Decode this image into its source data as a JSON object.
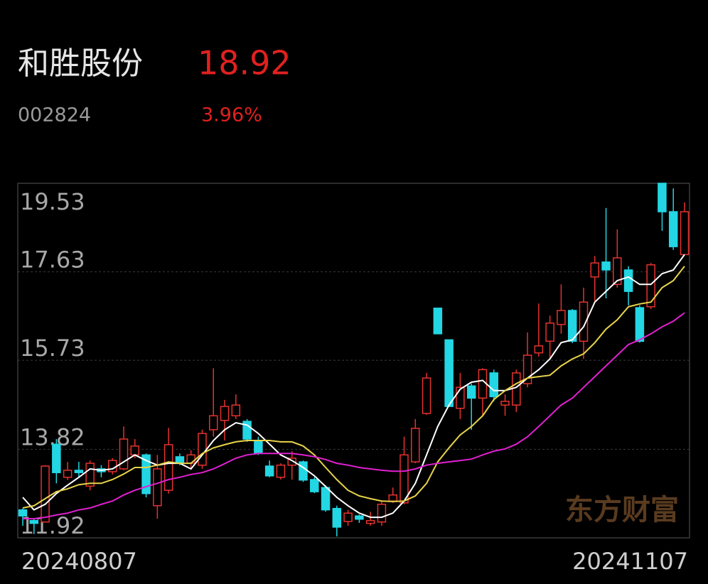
{
  "header": {
    "name": "和胜股份",
    "price": "18.92",
    "code": "002824",
    "change": "3.96%"
  },
  "watermark": "东方财富",
  "chart_data": {
    "type": "candlestick",
    "categories": [
      "20240807",
      null,
      null,
      null,
      null,
      null,
      null,
      null,
      null,
      null,
      null,
      null,
      null,
      null,
      null,
      null,
      null,
      null,
      null,
      null,
      null,
      null,
      null,
      null,
      null,
      null,
      null,
      null,
      null,
      null,
      null,
      null,
      null,
      null,
      null,
      null,
      null,
      null,
      null,
      null,
      null,
      null,
      null,
      null,
      null,
      null,
      null,
      null,
      null,
      null,
      null,
      null,
      null,
      null,
      null,
      null,
      null,
      null,
      null,
      "20241107"
    ],
    "open": [
      12.52,
      12.29,
      12.26,
      13.93,
      13.22,
      13.37,
      13.03,
      13.4,
      13.34,
      13.4,
      13.7,
      13.7,
      12.61,
      12.94,
      13.66,
      13.52,
      13.48,
      14.24,
      14.44,
      14.54,
      14.42,
      14.01,
      13.46,
      13.22,
      13.48,
      13.55,
      13.17,
      13.0,
      12.55,
      12.27,
      12.39,
      12.23,
      12.26,
      12.71,
      12.67,
      13.55,
      14.59,
      16.85,
      16.17,
      14.7,
      15.18,
      14.92,
      15.46,
      14.77,
      14.77,
      15.23,
      15.89,
      16.14,
      16.5,
      16.8,
      16.14,
      17.52,
      17.84,
      17.36,
      17.67,
      16.86,
      16.88,
      19.53,
      18.92,
      18.0
    ],
    "high": [
      12.55,
      12.33,
      13.48,
      14.04,
      13.55,
      13.55,
      13.58,
      13.48,
      13.63,
      14.31,
      14.04,
      13.73,
      13.7,
      14.28,
      13.73,
      13.8,
      14.24,
      15.56,
      14.88,
      15.0,
      14.47,
      14.09,
      13.58,
      13.52,
      13.78,
      13.58,
      13.22,
      13.05,
      12.61,
      12.52,
      12.42,
      12.48,
      12.71,
      13.0,
      14.09,
      14.47,
      15.46,
      16.85,
      16.17,
      15.46,
      15.23,
      15.56,
      15.53,
      15.0,
      15.53,
      16.33,
      16.95,
      16.69,
      17.36,
      16.83,
      17.29,
      17.97,
      19.0,
      18.54,
      17.75,
      16.91,
      17.82,
      19.53,
      19.42,
      19.12
    ],
    "low": [
      12.18,
      12.0,
      12.26,
      13.09,
      13.16,
      13.22,
      12.94,
      13.22,
      13.28,
      13.37,
      13.63,
      12.79,
      12.33,
      12.87,
      13.48,
      13.4,
      13.4,
      14.09,
      14.01,
      14.47,
      13.98,
      13.7,
      13.22,
      13.17,
      13.17,
      13.12,
      12.88,
      12.48,
      11.95,
      12.18,
      12.24,
      12.18,
      12.18,
      12.67,
      12.64,
      13.52,
      14.56,
      16.3,
      14.74,
      14.47,
      14.24,
      14.54,
      14.85,
      14.54,
      14.62,
      15.15,
      15.81,
      15.76,
      16.3,
      16.1,
      15.76,
      16.98,
      17.06,
      17.29,
      16.91,
      16.11,
      16.83,
      18.51,
      18.1,
      18.0
    ],
    "close": [
      12.39,
      12.23,
      13.46,
      13.32,
      13.37,
      13.32,
      13.52,
      13.34,
      13.58,
      14.04,
      13.89,
      12.87,
      13.4,
      13.92,
      13.54,
      13.7,
      14.16,
      14.54,
      14.74,
      14.77,
      14.04,
      13.73,
      13.25,
      13.48,
      13.63,
      13.16,
      12.91,
      12.52,
      12.15,
      12.45,
      12.32,
      12.29,
      12.64,
      12.84,
      13.7,
      14.27,
      15.35,
      16.3,
      14.74,
      15.15,
      14.92,
      15.53,
      14.95,
      14.85,
      15.46,
      15.84,
      16.04,
      16.53,
      16.8,
      16.14,
      16.98,
      17.82,
      17.67,
      17.93,
      17.21,
      16.14,
      17.78,
      18.92,
      18.17,
      18.92
    ],
    "up_color": "#e4322e",
    "down_color": "#22d6e4",
    "lines": [
      {
        "color": "#ffffff",
        "values": [
          12.79,
          12.52,
          12.64,
          12.87,
          13.05,
          13.22,
          13.4,
          13.37,
          13.4,
          13.55,
          13.7,
          13.58,
          13.48,
          13.52,
          13.52,
          13.4,
          13.7,
          14.01,
          14.24,
          14.39,
          14.34,
          14.16,
          13.93,
          13.7,
          13.58,
          13.43,
          13.25,
          13.02,
          12.79,
          12.61,
          12.45,
          12.36,
          12.36,
          12.45,
          12.71,
          13.09,
          13.7,
          14.31,
          14.77,
          15.11,
          15.26,
          15.3,
          15.08,
          15.08,
          15.15,
          15.35,
          15.53,
          15.76,
          16.11,
          16.17,
          16.45,
          16.98,
          17.21,
          17.44,
          17.52,
          17.36,
          17.36,
          17.59,
          17.67,
          18.0
        ]
      },
      {
        "color": "#e8d44a",
        "values": [
          12.56,
          12.61,
          12.76,
          12.91,
          12.97,
          13.06,
          13.09,
          13.09,
          13.17,
          13.29,
          13.43,
          13.43,
          13.48,
          13.55,
          13.52,
          13.52,
          13.73,
          13.85,
          13.92,
          13.98,
          14.01,
          14.01,
          14.01,
          13.98,
          13.98,
          13.89,
          13.7,
          13.43,
          13.17,
          12.94,
          12.82,
          12.76,
          12.71,
          12.7,
          12.71,
          12.82,
          13.09,
          13.55,
          13.85,
          14.13,
          14.31,
          14.54,
          14.89,
          15.08,
          15.23,
          15.35,
          15.38,
          15.41,
          15.61,
          15.76,
          15.87,
          16.11,
          16.4,
          16.6,
          16.88,
          16.94,
          16.98,
          17.29,
          17.44,
          17.75
        ]
      },
      {
        "color": "#e020d0",
        "values": [
          12.33,
          12.33,
          12.36,
          12.41,
          12.45,
          12.52,
          12.56,
          12.64,
          12.71,
          12.84,
          12.94,
          13.02,
          13.09,
          13.17,
          13.22,
          13.28,
          13.32,
          13.4,
          13.51,
          13.63,
          13.7,
          13.73,
          13.73,
          13.73,
          13.73,
          13.7,
          13.66,
          13.6,
          13.52,
          13.48,
          13.43,
          13.4,
          13.37,
          13.35,
          13.35,
          13.4,
          13.48,
          13.52,
          13.55,
          13.58,
          13.61,
          13.7,
          13.78,
          13.83,
          13.93,
          14.09,
          14.31,
          14.54,
          14.77,
          14.92,
          15.15,
          15.38,
          15.61,
          15.84,
          16.07,
          16.17,
          16.3,
          16.45,
          16.57,
          16.75
        ]
      }
    ],
    "ylim": [
      11.92,
      19.53
    ],
    "yticks": [
      11.92,
      13.82,
      15.73,
      17.63,
      19.53
    ],
    "grid": true
  }
}
